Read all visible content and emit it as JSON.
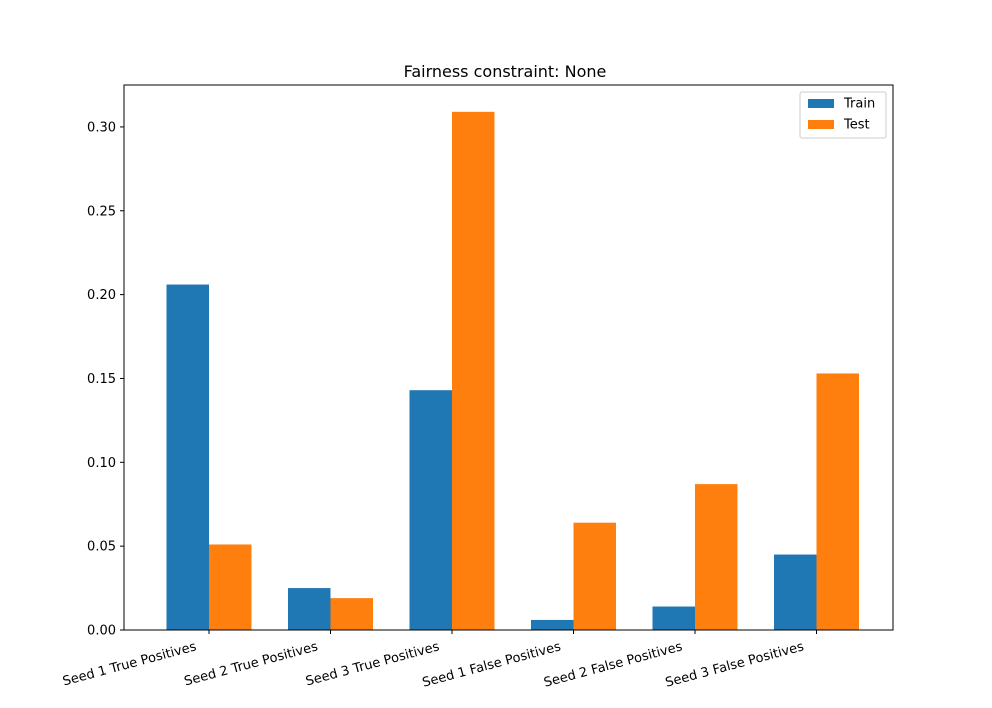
{
  "chart_data": {
    "type": "bar",
    "title": "Fairness constraint: None",
    "xlabel": "",
    "ylabel": "",
    "categories": [
      "Seed 1 True Positives",
      "Seed 2 True Positives",
      "Seed 3 True Positives",
      "Seed 1 False Positives",
      "Seed 2 False Positives",
      "Seed 3 False Positives"
    ],
    "series": [
      {
        "name": "Train",
        "color": "#1f77b4",
        "values": [
          0.206,
          0.025,
          0.143,
          0.006,
          0.014,
          0.045
        ]
      },
      {
        "name": "Test",
        "color": "#ff7f0e",
        "values": [
          0.051,
          0.019,
          0.309,
          0.064,
          0.087,
          0.153
        ]
      }
    ],
    "ylim": [
      0,
      0.325
    ],
    "yticks": [
      "0.00",
      "0.05",
      "0.10",
      "0.15",
      "0.20",
      "0.25",
      "0.30"
    ],
    "legend_position": "top-right",
    "grid": false
  }
}
